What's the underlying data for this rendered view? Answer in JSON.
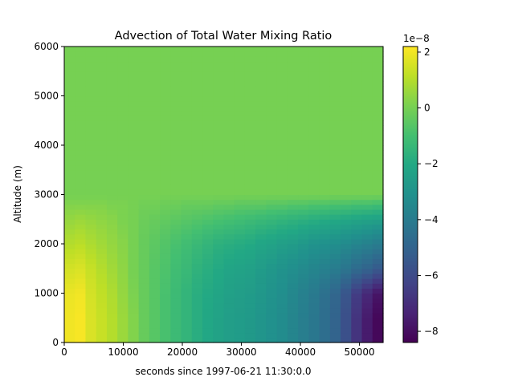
{
  "chart_data": {
    "type": "heatmap",
    "title": "Advection of Total Water Mixing Ratio",
    "xlabel": "seconds since 1997-06-21 11:30:0.0",
    "ylabel": "Altitude (m)",
    "xlim": [
      0,
      54000
    ],
    "ylim": [
      0,
      6000
    ],
    "x_ticks": [
      0,
      10000,
      20000,
      30000,
      40000,
      50000
    ],
    "x_tick_labels": [
      "0",
      "10000",
      "20000",
      "30000",
      "40000",
      "50000"
    ],
    "y_ticks": [
      0,
      1000,
      2000,
      3000,
      4000,
      5000,
      6000
    ],
    "y_tick_labels": [
      "0",
      "1000",
      "2000",
      "3000",
      "4000",
      "5000",
      "6000"
    ],
    "colorbar": {
      "range": [
        -8.4,
        2.2
      ],
      "ticks": [
        2,
        0,
        -2,
        -4,
        -6,
        -8
      ],
      "tick_labels": [
        "2",
        "0",
        "−2",
        "−4",
        "−6",
        "−8"
      ],
      "offset_text": "1e−8",
      "colormap": "viridis"
    },
    "x_step_seconds": 1800,
    "z_levels": [
      {
        "alt": 0,
        "values": [
          2.0,
          2.1,
          1.6,
          1.3,
          1.0,
          0.6,
          0.2,
          -0.3,
          -0.6,
          -0.9,
          -1.2,
          -1.5,
          -1.8,
          -2.1,
          -2.3,
          -2.5,
          -2.6,
          -2.7,
          -2.9,
          -3.1,
          -3.3,
          -3.6,
          -3.9,
          -4.2,
          -4.6,
          -5.0,
          -5.8,
          -6.8,
          -7.6,
          -8.2
        ]
      },
      {
        "alt": 500,
        "values": [
          2.0,
          2.1,
          1.6,
          1.3,
          1.0,
          0.6,
          0.2,
          -0.3,
          -0.6,
          -0.9,
          -1.2,
          -1.5,
          -1.8,
          -2.1,
          -2.3,
          -2.5,
          -2.6,
          -2.7,
          -2.9,
          -3.1,
          -3.3,
          -3.6,
          -3.9,
          -4.2,
          -4.6,
          -5.0,
          -5.8,
          -6.8,
          -7.6,
          -8.2
        ]
      },
      {
        "alt": 1000,
        "values": [
          1.9,
          2.0,
          1.5,
          1.2,
          0.9,
          0.5,
          0.1,
          -0.3,
          -0.6,
          -0.9,
          -1.2,
          -1.5,
          -1.8,
          -2.0,
          -2.2,
          -2.4,
          -2.5,
          -2.6,
          -2.8,
          -3.0,
          -3.2,
          -3.5,
          -3.8,
          -4.1,
          -4.5,
          -4.9,
          -5.6,
          -6.5,
          -7.2,
          -7.8
        ]
      },
      {
        "alt": 1500,
        "values": [
          1.5,
          1.6,
          1.3,
          1.0,
          0.7,
          0.4,
          0.0,
          -0.3,
          -0.6,
          -0.8,
          -1.1,
          -1.3,
          -1.6,
          -1.8,
          -2.0,
          -2.2,
          -2.3,
          -2.4,
          -2.6,
          -2.8,
          -3.0,
          -3.2,
          -3.4,
          -3.6,
          -3.8,
          -4.0,
          -4.3,
          -4.7,
          -5.0,
          -5.4
        ]
      },
      {
        "alt": 2000,
        "values": [
          1.0,
          1.1,
          0.9,
          0.7,
          0.5,
          0.3,
          0.0,
          -0.3,
          -0.5,
          -0.7,
          -0.9,
          -1.1,
          -1.3,
          -1.5,
          -1.7,
          -1.8,
          -1.9,
          -2.0,
          -2.2,
          -2.3,
          -2.5,
          -2.6,
          -2.8,
          -3.0,
          -3.1,
          -3.2,
          -3.4,
          -3.6,
          -3.8,
          -4.0
        ]
      },
      {
        "alt": 2500,
        "values": [
          0.5,
          0.6,
          0.5,
          0.4,
          0.3,
          0.1,
          0.0,
          -0.2,
          -0.3,
          -0.4,
          -0.5,
          -0.6,
          -0.7,
          -0.8,
          -0.9,
          -1.0,
          -1.1,
          -1.2,
          -1.3,
          -1.4,
          -1.5,
          -1.6,
          -1.7,
          -1.8,
          -1.9,
          -2.0,
          -2.1,
          -2.2,
          -2.3,
          -2.4
        ]
      },
      {
        "alt": 2800,
        "values": [
          0.2,
          0.2,
          0.2,
          0.2,
          0.1,
          0.1,
          0.0,
          -0.1,
          -0.1,
          -0.2,
          -0.2,
          -0.3,
          -0.3,
          -0.3,
          -0.4,
          -0.4,
          -0.5,
          -0.5,
          -0.5,
          -0.6,
          -0.6,
          -0.7,
          -0.7,
          -0.8,
          -0.8,
          -0.9,
          -0.9,
          -1.0,
          -1.0,
          -1.1
        ]
      },
      {
        "alt": 3000,
        "values": [
          0.0,
          0.0,
          0.0,
          0.0,
          0.0,
          0.0,
          0.0,
          0.0,
          0.0,
          0.0,
          0.0,
          0.0,
          0.0,
          0.0,
          0.0,
          0.0,
          0.0,
          0.0,
          0.0,
          0.0,
          0.0,
          0.0,
          0.0,
          0.0,
          0.0,
          0.0,
          0.0,
          0.0,
          0.0,
          0.0
        ]
      },
      {
        "alt": 6000,
        "values": [
          0.0,
          0.0,
          0.0,
          0.0,
          0.0,
          0.0,
          0.0,
          0.0,
          0.0,
          0.0,
          0.0,
          0.0,
          0.0,
          0.0,
          0.0,
          0.0,
          0.0,
          0.0,
          0.0,
          0.0,
          0.0,
          0.0,
          0.0,
          0.0,
          0.0,
          0.0,
          0.0,
          0.0,
          0.0,
          0.0
        ]
      }
    ]
  }
}
